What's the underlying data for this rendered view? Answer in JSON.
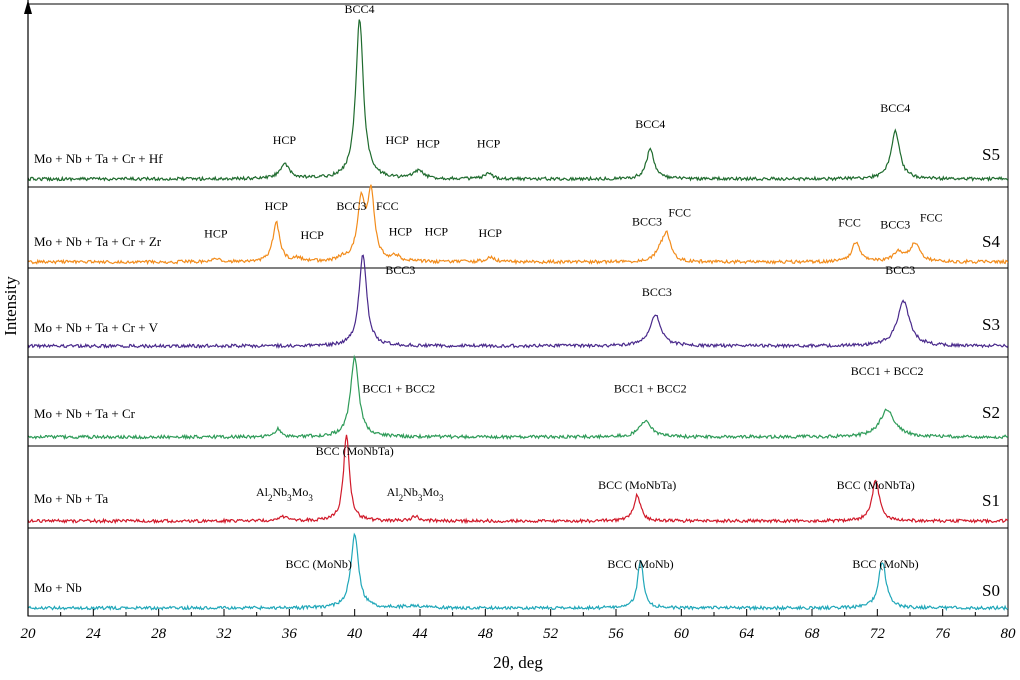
{
  "chart_data": {
    "type": "line",
    "xlabel": "2θ, deg",
    "ylabel": "Intensity",
    "xlim": [
      20,
      80
    ],
    "x_ticks": [
      "20",
      "24",
      "28",
      "32",
      "36",
      "40",
      "44",
      "48",
      "52",
      "56",
      "60",
      "64",
      "68",
      "72",
      "76",
      "80"
    ],
    "grid": false,
    "series": [
      {
        "name": "S5",
        "composition": "Mo + Nb + Ta + Cr + Hf",
        "color": "#1f6b2e",
        "peaks": [
          [
            35.7,
            0.09
          ],
          [
            40.3,
            1.0
          ],
          [
            43.9,
            0.05
          ],
          [
            48.2,
            0.03
          ],
          [
            58.1,
            0.19
          ],
          [
            73.1,
            0.3
          ]
        ],
        "widths": [
          0.35,
          0.28,
          0.35,
          0.3,
          0.28,
          0.32
        ],
        "annotations": [
          {
            "text": "BCC4",
            "x": 40.3,
            "y": 1.0
          },
          {
            "text": "HCP",
            "x": 35.7,
            "y": 0.18
          },
          {
            "text": "HCP",
            "x": 42.6,
            "y": 0.18
          },
          {
            "text": "HCP",
            "x": 44.5,
            "y": 0.16
          },
          {
            "text": "HCP",
            "x": 48.2,
            "y": 0.16
          },
          {
            "text": "BCC4",
            "x": 58.1,
            "y": 0.28
          },
          {
            "text": "BCC4",
            "x": 73.1,
            "y": 0.38
          }
        ]
      },
      {
        "name": "S4",
        "composition": "Mo + Nb + Ta + Cr + Zr",
        "color": "#f28c1c",
        "peaks": [
          [
            31.5,
            0.04
          ],
          [
            35.2,
            0.6
          ],
          [
            36.5,
            0.05
          ],
          [
            39.3,
            0.05
          ],
          [
            40.4,
            0.9
          ],
          [
            41.0,
            1.0
          ],
          [
            42.5,
            0.08
          ],
          [
            48.3,
            0.08
          ],
          [
            58.7,
            0.16
          ],
          [
            59.1,
            0.4
          ],
          [
            70.7,
            0.3
          ],
          [
            73.3,
            0.14
          ],
          [
            74.3,
            0.28
          ]
        ],
        "widths": [
          0.3,
          0.25,
          0.3,
          0.3,
          0.28,
          0.25,
          0.3,
          0.3,
          0.3,
          0.28,
          0.3,
          0.4,
          0.35
        ],
        "annotations": [
          {
            "text": "HCP",
            "x": 31.5,
            "y": 0.28
          },
          {
            "text": "HCP",
            "x": 35.2,
            "y": 0.7
          },
          {
            "text": "HCP",
            "x": 37.4,
            "y": 0.26
          },
          {
            "text": "BCC3",
            "x": 39.8,
            "y": 0.7
          },
          {
            "text": "FCC",
            "x": 42.0,
            "y": 0.7
          },
          {
            "text": "HCP",
            "x": 42.8,
            "y": 0.31
          },
          {
            "text": "HCP",
            "x": 45.0,
            "y": 0.31
          },
          {
            "text": "HCP",
            "x": 48.3,
            "y": 0.29
          },
          {
            "text": "BCC3",
            "x": 57.9,
            "y": 0.46
          },
          {
            "text": "FCC",
            "x": 59.9,
            "y": 0.6
          },
          {
            "text": "FCC",
            "x": 70.3,
            "y": 0.45
          },
          {
            "text": "BCC3",
            "x": 73.1,
            "y": 0.42
          },
          {
            "text": "FCC",
            "x": 75.3,
            "y": 0.52
          }
        ]
      },
      {
        "name": "S3",
        "composition": "Mo + Nb + Ta + Cr + V",
        "color": "#4a2a8c",
        "peaks": [
          [
            40.5,
            1.0
          ],
          [
            58.4,
            0.34
          ],
          [
            73.6,
            0.49
          ]
        ],
        "widths": [
          0.28,
          0.4,
          0.45
        ],
        "annotations": [
          {
            "text": "BCC3",
            "x": 42.8,
            "y": 0.72
          },
          {
            "text": "BCC3",
            "x": 58.5,
            "y": 0.48
          },
          {
            "text": "BCC3",
            "x": 73.4,
            "y": 0.72
          }
        ]
      },
      {
        "name": "S2",
        "composition": "Mo + Nb + Ta + Cr",
        "color": "#2e9b58",
        "peaks": [
          [
            35.3,
            0.1
          ],
          [
            40.0,
            1.0
          ],
          [
            57.8,
            0.19
          ],
          [
            72.6,
            0.34
          ]
        ],
        "widths": [
          0.2,
          0.3,
          0.45,
          0.55
        ],
        "annotations": [
          {
            "text": "BCC1 + BCC2",
            "x": 42.7,
            "y": 0.48
          },
          {
            "text": "BCC1 + BCC2",
            "x": 58.1,
            "y": 0.48
          },
          {
            "text": "BCC1 + BCC2",
            "x": 72.6,
            "y": 0.7
          }
        ]
      },
      {
        "name": "S1",
        "composition": "Mo + Nb + Ta",
        "color": "#d11a2a",
        "peaks": [
          [
            35.7,
            0.05
          ],
          [
            39.5,
            1.0
          ],
          [
            43.7,
            0.05
          ],
          [
            57.3,
            0.3
          ],
          [
            71.9,
            0.47
          ]
        ],
        "widths": [
          0.35,
          0.22,
          0.3,
          0.25,
          0.28
        ],
        "annotations": [
          {
            "text": "BCC (MoNbTa)",
            "x": 40.0,
            "y": 0.7
          },
          {
            "text": "Al2Nb3Mo3",
            "x": 35.7,
            "y": 0.22
          },
          {
            "text": "Al2Nb3Mo3",
            "x": 43.7,
            "y": 0.22
          },
          {
            "text": "BCC (MoNbTa)",
            "x": 57.3,
            "y": 0.3
          },
          {
            "text": "BCC (MoNbTa)",
            "x": 71.9,
            "y": 0.3
          }
        ]
      },
      {
        "name": "S0",
        "composition": "Mo + Nb",
        "color": "#20a7b9",
        "peaks": [
          [
            40.0,
            1.0
          ],
          [
            57.5,
            0.63
          ],
          [
            72.3,
            0.63
          ],
          [
            43.5,
            0.03
          ]
        ],
        "widths": [
          0.28,
          0.22,
          0.28,
          0.6
        ],
        "annotations": [
          {
            "text": "BCC (MoNb)",
            "x": 37.8,
            "y": 0.46
          },
          {
            "text": "BCC (MoNb)",
            "x": 57.5,
            "y": 0.46
          },
          {
            "text": "BCC (MoNb)",
            "x": 72.5,
            "y": 0.46
          }
        ]
      }
    ]
  }
}
